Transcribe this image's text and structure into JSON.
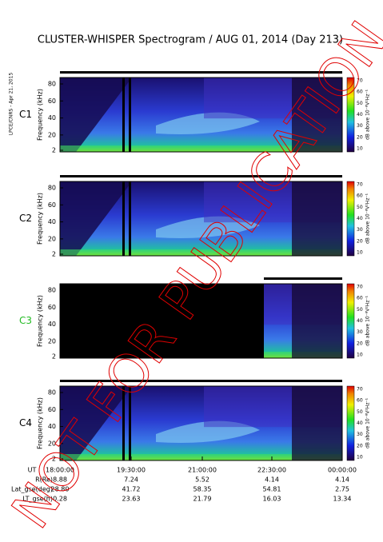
{
  "title": "CLUSTER-WHISPER Spectrogram / AUG 01, 2014 (Day 213)",
  "side_note": "LPCE/CNRS - Apr 21, 2015",
  "watermark": "NOT FOR PUBLICATION",
  "y_label": "Frequency (kHz)",
  "y_ticks": [
    2,
    20,
    40,
    60,
    80
  ],
  "colorbar": {
    "label": "dB above 10⁻⁸V²Hz⁻¹",
    "ticks": [
      10,
      20,
      30,
      40,
      50,
      60,
      70
    ]
  },
  "panels": [
    {
      "label": "C1",
      "color": "#000000"
    },
    {
      "label": "C2",
      "color": "#000000"
    },
    {
      "label": "C3",
      "color": "#22bb22"
    },
    {
      "label": "C4",
      "color": "#000000"
    }
  ],
  "ephemeris": {
    "labels": [
      "UT",
      "R(Re)",
      "Lat_gse(deg)",
      "LT_gse(h)"
    ],
    "rows": [
      [
        "18:00:00",
        "19:30:00",
        "21:00:00",
        "22:30:00",
        "00:00:00"
      ],
      [
        "8.88",
        "7.24",
        "5.52",
        "4.14",
        "4.14"
      ],
      [
        "28.80",
        "41.72",
        "58.35",
        "54.81",
        "2.75"
      ],
      [
        "0.28",
        "23.63",
        "21.79",
        "16.03",
        "13.34"
      ]
    ]
  }
}
